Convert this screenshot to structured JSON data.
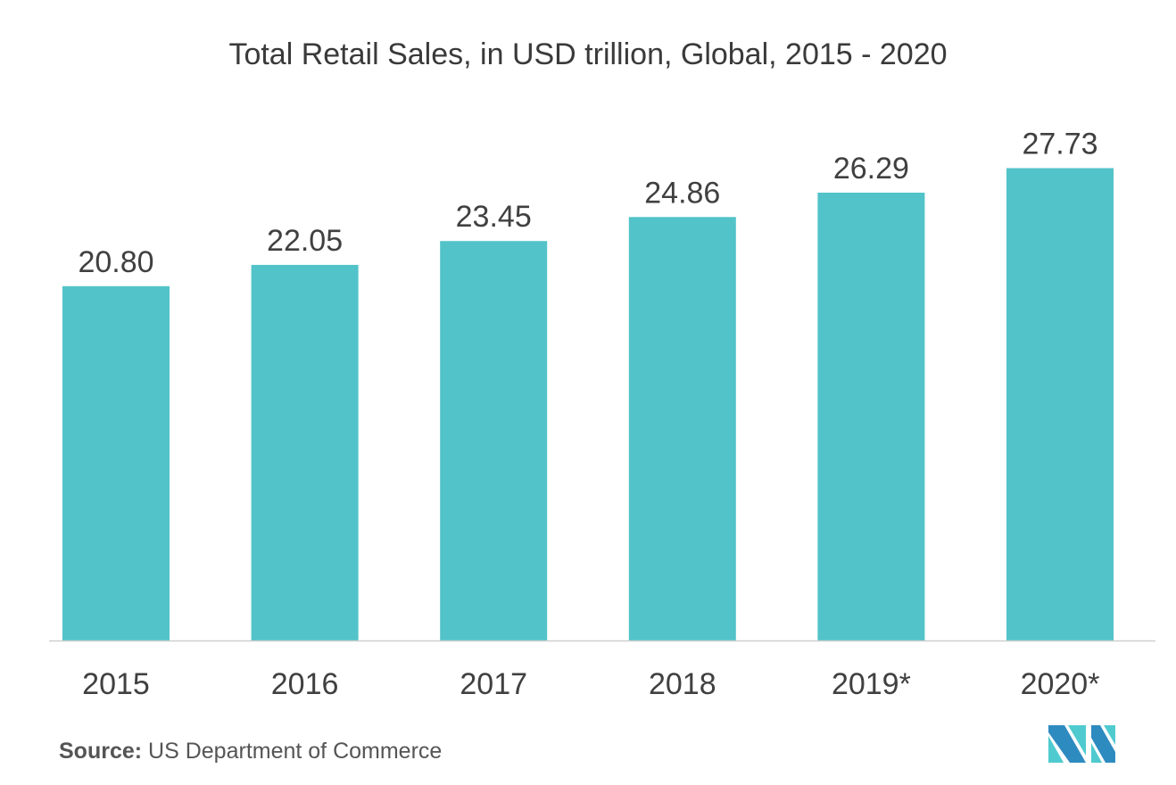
{
  "chart_data": {
    "type": "bar",
    "title": "Total Retail Sales, in USD trillion, Global, 2015 - 2020",
    "categories": [
      "2015",
      "2016",
      "2017",
      "2018",
      "2019*",
      "2020*"
    ],
    "values": [
      20.8,
      22.05,
      23.45,
      24.86,
      26.29,
      27.73
    ],
    "value_labels": [
      "20.80",
      "22.05",
      "23.45",
      "24.86",
      "26.29",
      "27.73"
    ],
    "xlabel": "",
    "ylabel": "",
    "ylim": [
      0,
      37.6
    ],
    "grid": false,
    "bar_color": "#52C3C9"
  },
  "source": {
    "label": "Source:",
    "text": "US Department of Commerce"
  },
  "logo": {
    "colors": [
      "#2E8BC0",
      "#4FCBCF"
    ]
  }
}
